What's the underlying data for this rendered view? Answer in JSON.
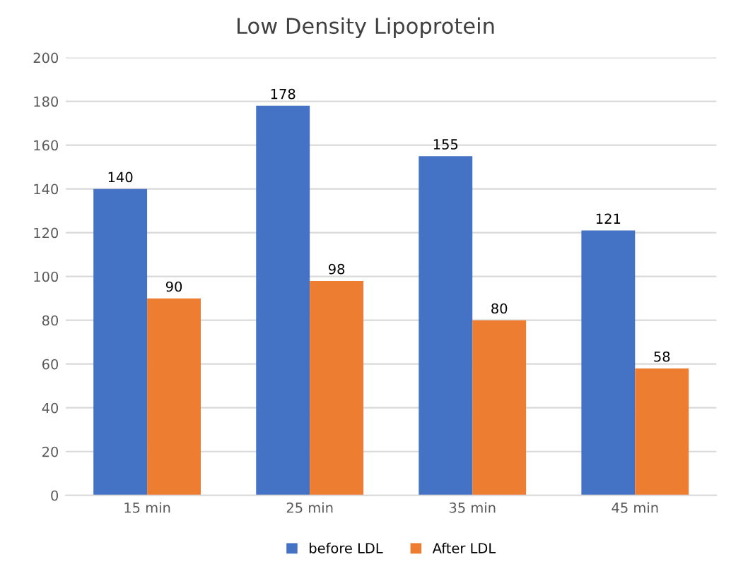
{
  "chart_data": {
    "type": "bar",
    "title": "Low Density Lipoprotein",
    "categories": [
      "15 min",
      "25 min",
      "35 min",
      "45 min"
    ],
    "series": [
      {
        "name": "before LDL",
        "color": "#4472c4",
        "values": [
          140,
          178,
          155,
          121
        ]
      },
      {
        "name": "After LDL",
        "color": "#ed7d31",
        "values": [
          90,
          98,
          80,
          58
        ]
      }
    ],
    "ylim": [
      0,
      200
    ],
    "yticks": [
      0,
      20,
      40,
      60,
      80,
      100,
      120,
      140,
      160,
      180,
      200
    ],
    "grid": "y",
    "legend": "bottom",
    "data_labels": true
  }
}
